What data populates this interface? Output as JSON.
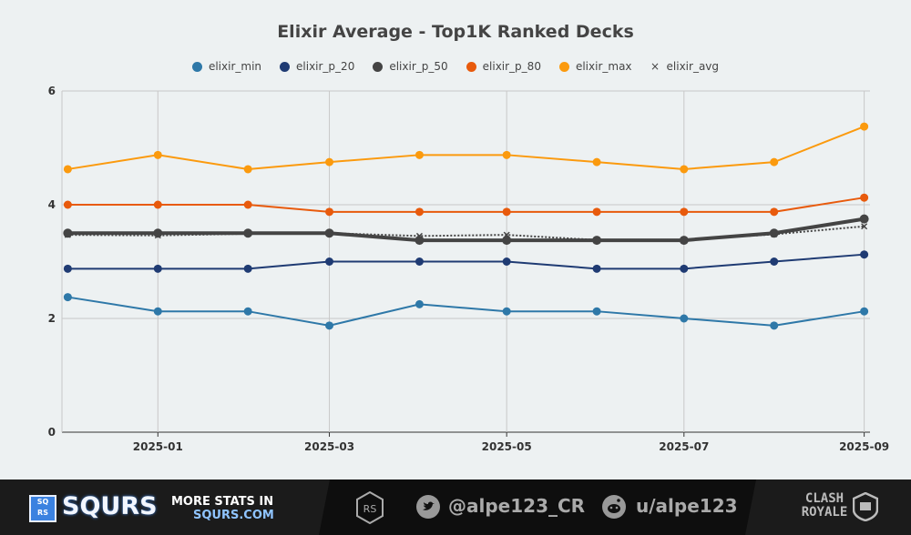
{
  "chart_data": {
    "type": "line",
    "title": "Elixir Average - Top1K Ranked Decks",
    "x": [
      "2024-12-01",
      "2025-01-01",
      "2025-02-01",
      "2025-03-01",
      "2025-04-01",
      "2025-05-01",
      "2025-06-01",
      "2025-07-01",
      "2025-08-01",
      "2025-09-01"
    ],
    "x_ticks": [
      "2025-01",
      "2025-03",
      "2025-05",
      "2025-07",
      "2025-09"
    ],
    "y_ticks": [
      "0",
      "2",
      "4",
      "6"
    ],
    "ylim": [
      0,
      6
    ],
    "grid": true,
    "legend_position": "top",
    "series": [
      {
        "name": "elixir_min",
        "color": "#2e78a8",
        "marker": "dot",
        "values": [
          2.375,
          2.125,
          2.125,
          1.875,
          2.25,
          2.125,
          2.125,
          2.0,
          1.875,
          2.125
        ]
      },
      {
        "name": "elixir_p_20",
        "color": "#1f3b73",
        "marker": "dot",
        "values": [
          2.875,
          2.875,
          2.875,
          3.0,
          3.0,
          3.0,
          2.875,
          2.875,
          3.0,
          3.125
        ]
      },
      {
        "name": "elixir_p_50",
        "color": "#444444",
        "marker": "dot",
        "values": [
          3.5,
          3.5,
          3.5,
          3.5,
          3.375,
          3.375,
          3.375,
          3.375,
          3.5,
          3.75
        ]
      },
      {
        "name": "elixir_p_80",
        "color": "#e85a0c",
        "marker": "dot",
        "values": [
          4.0,
          4.0,
          4.0,
          3.875,
          3.875,
          3.875,
          3.875,
          3.875,
          3.875,
          4.125
        ]
      },
      {
        "name": "elixir_max",
        "color": "#fb9a0e",
        "marker": "dot",
        "values": [
          4.625,
          4.875,
          4.625,
          4.75,
          4.875,
          4.875,
          4.75,
          4.625,
          4.75,
          5.375
        ]
      },
      {
        "name": "elixir_avg",
        "color": "#444444",
        "marker": "x",
        "values": [
          3.47,
          3.46,
          3.49,
          3.5,
          3.45,
          3.47,
          3.38,
          3.38,
          3.48,
          3.62
        ]
      }
    ]
  },
  "footer": {
    "brand": "SQURS",
    "brand_box": "SQ RS",
    "more_stats": "MORE STATS IN",
    "site": "SQURS.COM",
    "twitter": "@alpe123_CR",
    "reddit": "u/alpe123",
    "game_logo": "CLASH ROYALE"
  }
}
